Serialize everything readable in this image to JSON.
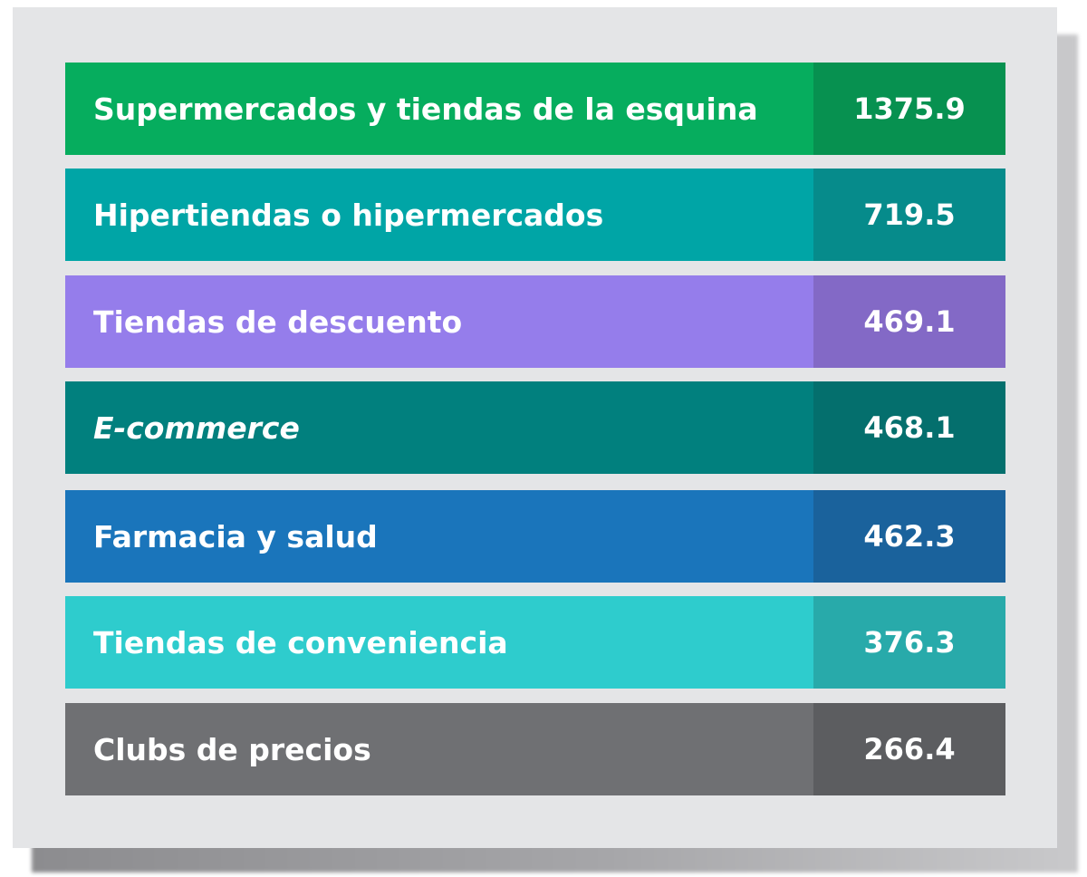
{
  "chart_data": {
    "type": "table",
    "rows": [
      {
        "label": "Supermercados y tiendas de la esquina",
        "value": "1375.9",
        "color": "#06ad5e",
        "value_color": "#079150",
        "italic": false
      },
      {
        "label": "Hipertiendas o hipermercados",
        "value": "719.5",
        "color": "#00a5a6",
        "value_color": "#068b8b",
        "italic": false
      },
      {
        "label": "Tiendas de descuento",
        "value": "469.1",
        "color": "#957deb",
        "value_color": "#8369c6",
        "italic": false
      },
      {
        "label": "E-commerce",
        "value": "468.1",
        "color": "#01807e",
        "value_color": "#046f6d",
        "italic": true
      },
      {
        "label": "Farmacia y salud",
        "value": "462.3",
        "color": "#1a75bb",
        "value_color": "#1a629c",
        "italic": false
      },
      {
        "label": "Tiendas de conveniencia",
        "value": "376.3",
        "color": "#2ecccd",
        "value_color": "#28aaaa",
        "italic": false
      },
      {
        "label": "Clubs de precios",
        "value": "266.4",
        "color": "#6f7073",
        "value_color": "#5c5d60",
        "italic": false
      }
    ]
  }
}
